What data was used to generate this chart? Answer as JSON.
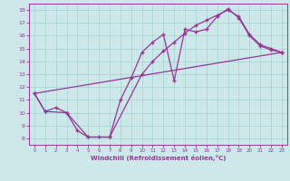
{
  "xlabel": "Windchill (Refroidissement éolien,°C)",
  "bg_color": "#cce8e8",
  "line_color": "#993399",
  "xlim": [
    -0.5,
    23.5
  ],
  "ylim": [
    7.5,
    18.5
  ],
  "xticks": [
    0,
    1,
    2,
    3,
    4,
    5,
    6,
    7,
    8,
    9,
    10,
    11,
    12,
    13,
    14,
    15,
    16,
    17,
    18,
    19,
    20,
    21,
    22,
    23
  ],
  "yticks": [
    8,
    9,
    10,
    11,
    12,
    13,
    14,
    15,
    16,
    17,
    18
  ],
  "series1_x": [
    0,
    1,
    2,
    3,
    4,
    5,
    6,
    7,
    8,
    9,
    10,
    11,
    12,
    13,
    14,
    15,
    16,
    17,
    18,
    19,
    20,
    21,
    22,
    23
  ],
  "series1_y": [
    11.5,
    10.1,
    10.4,
    10.0,
    8.6,
    8.1,
    8.1,
    8.1,
    11.0,
    12.7,
    14.7,
    15.5,
    16.1,
    12.5,
    16.5,
    16.3,
    16.5,
    17.5,
    18.1,
    17.4,
    16.0,
    15.2,
    14.9,
    14.7
  ],
  "series2_x": [
    0,
    1,
    3,
    5,
    7,
    10,
    11,
    12,
    13,
    14,
    15,
    16,
    17,
    18,
    19,
    20,
    21,
    22,
    23
  ],
  "series2_y": [
    11.5,
    10.1,
    10.0,
    8.1,
    8.1,
    13.0,
    14.0,
    14.8,
    15.5,
    16.2,
    16.8,
    17.2,
    17.6,
    18.0,
    17.5,
    16.1,
    15.3,
    15.0,
    14.7
  ],
  "series3_x": [
    0,
    23
  ],
  "series3_y": [
    11.5,
    14.7
  ]
}
